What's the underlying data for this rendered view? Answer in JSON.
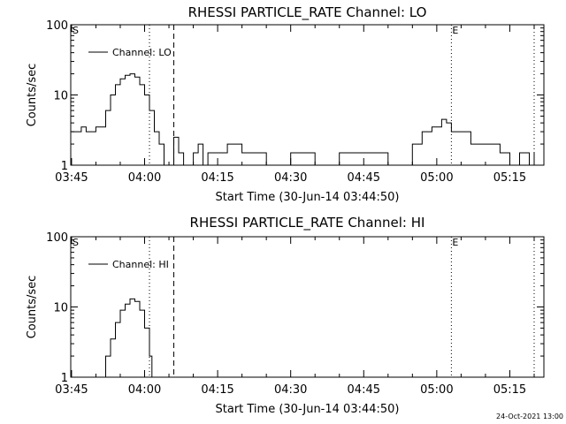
{
  "footer": {
    "timestamp": "24-Oct-2021 13:00"
  },
  "chart_data": [
    {
      "type": "line",
      "title": "RHESSI PARTICLE_RATE Channel: LO",
      "xlabel": "Start Time (30-Jun-14 03:44:50)",
      "ylabel": "Counts/sec",
      "yscale": "log",
      "ylim": [
        1,
        100
      ],
      "xlim": [
        "03:44:50",
        "05:22:00"
      ],
      "xticks": [
        "03:45",
        "04:00",
        "04:15",
        "04:30",
        "04:45",
        "05:00",
        "05:15"
      ],
      "yticks": [
        "1",
        "10",
        "100"
      ],
      "legend": {
        "label": "Channel: LO",
        "placement": "top-left"
      },
      "markers": {
        "start_label": "S",
        "end_label": "E"
      },
      "vlines": [
        {
          "time": "04:01:00",
          "style": "dotted"
        },
        {
          "time": "04:06:00",
          "style": "dashed"
        },
        {
          "time": "05:03:00",
          "style": "dotted"
        },
        {
          "time": "05:20:00",
          "style": "dotted"
        }
      ],
      "series": [
        {
          "name": "Channel: LO",
          "x": [
            "03:45:00",
            "03:46:00",
            "03:47:00",
            "03:48:00",
            "03:49:00",
            "03:50:00",
            "03:51:00",
            "03:52:00",
            "03:53:00",
            "03:54:00",
            "03:55:00",
            "03:56:00",
            "03:57:00",
            "03:58:00",
            "03:59:00",
            "04:00:00",
            "04:01:00",
            "04:02:00",
            "04:03:00",
            "04:04:00",
            "04:05:00",
            "04:06:00",
            "04:07:00",
            "04:08:00",
            "04:10:00",
            "04:11:00",
            "04:12:00",
            "04:13:00",
            "04:14:00",
            "04:15:00",
            "04:17:00",
            "04:20:00",
            "04:25:00",
            "04:30:00",
            "04:33:00",
            "04:35:00",
            "04:40:00",
            "04:45:00",
            "04:48:00",
            "04:50:00",
            "04:55:00",
            "04:57:00",
            "04:59:00",
            "05:01:00",
            "05:02:00",
            "05:03:00",
            "05:05:00",
            "05:07:00",
            "05:10:00",
            "05:13:00",
            "05:15:00",
            "05:17:00",
            "05:19:00",
            "05:20:00"
          ],
          "values": [
            3,
            3,
            3.5,
            3,
            3,
            3.5,
            3.5,
            6,
            10,
            14,
            17,
            19,
            20,
            18,
            14,
            10,
            6,
            3,
            2,
            1,
            1,
            2.5,
            1.5,
            1,
            1.5,
            2,
            1,
            1.5,
            1.5,
            1.5,
            2,
            1.5,
            1,
            1.5,
            1.5,
            1,
            1.5,
            1.5,
            1.5,
            1,
            2,
            3,
            3.5,
            4.5,
            4,
            3,
            3,
            2,
            2,
            1.5,
            1,
            1.5,
            1,
            1.5
          ]
        }
      ]
    },
    {
      "type": "line",
      "title": "RHESSI PARTICLE_RATE Channel: HI",
      "xlabel": "Start Time (30-Jun-14 03:44:50)",
      "ylabel": "Counts/sec",
      "yscale": "log",
      "ylim": [
        1,
        100
      ],
      "xlim": [
        "03:44:50",
        "05:22:00"
      ],
      "xticks": [
        "03:45",
        "04:00",
        "04:15",
        "04:30",
        "04:45",
        "05:00",
        "05:15"
      ],
      "yticks": [
        "1",
        "10",
        "100"
      ],
      "legend": {
        "label": "Channel: HI",
        "placement": "top-left"
      },
      "markers": {
        "start_label": "S",
        "end_label": "E"
      },
      "vlines": [
        {
          "time": "04:01:00",
          "style": "dotted"
        },
        {
          "time": "04:06:00",
          "style": "dashed"
        },
        {
          "time": "05:03:00",
          "style": "dotted"
        },
        {
          "time": "05:20:00",
          "style": "dotted"
        }
      ],
      "series": [
        {
          "name": "Channel: HI",
          "x": [
            "03:51:30",
            "03:52:00",
            "03:53:00",
            "03:54:00",
            "03:55:00",
            "03:56:00",
            "03:57:00",
            "03:58:00",
            "03:59:00",
            "04:00:00",
            "04:01:00",
            "04:01:30"
          ],
          "values": [
            1,
            2,
            3.5,
            6,
            9,
            11,
            13,
            12,
            9,
            5,
            2,
            1
          ]
        }
      ]
    }
  ]
}
